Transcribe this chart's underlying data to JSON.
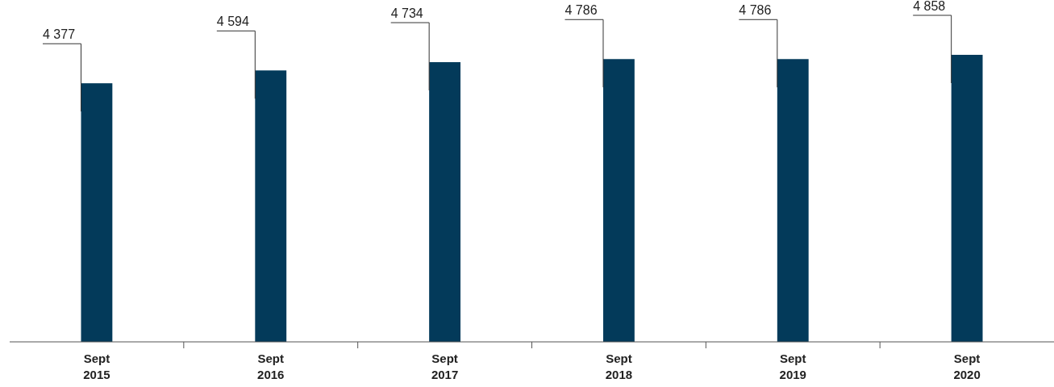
{
  "chart_data": {
    "type": "bar",
    "categories": [
      "Sept 2015",
      "Sept 2016",
      "Sept 2017",
      "Sept 2018",
      "Sept 2019",
      "Sept 2020"
    ],
    "values": [
      4377,
      4594,
      4734,
      4786,
      4786,
      4858
    ],
    "value_labels": [
      "4 377",
      "4 594",
      "4 734",
      "4 786",
      "4 786",
      "4 858"
    ],
    "color": "#033a5a"
  }
}
